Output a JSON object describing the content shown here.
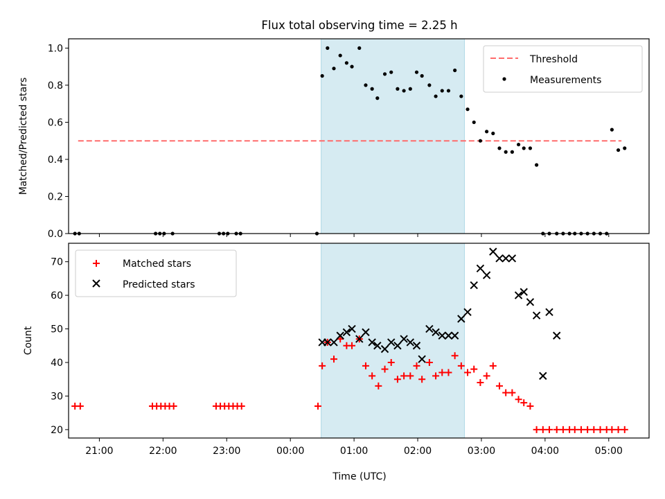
{
  "figure": {
    "title": "Flux total observing time = 2.25 h",
    "xlabel": "Time (UTC)",
    "colors": {
      "shade": "#add8e6",
      "threshold": "#ff6b6b",
      "measure": "#000000",
      "matched": "#ff0000",
      "predicted": "#000000"
    }
  },
  "chart_data": [
    {
      "type": "scatter",
      "ylabel": "Matched/Predicted stars",
      "xlim": [
        "20:31",
        "05:38"
      ],
      "ylim": [
        0,
        1.05
      ],
      "yticks": [
        "0.0",
        "0.2",
        "0.4",
        "0.6",
        "0.8",
        "1.0"
      ],
      "shaded_interval": [
        "00:29",
        "02:44"
      ],
      "legend_position": "upper right",
      "threshold": {
        "name": "Threshold",
        "value": 0.5,
        "x_range": [
          "20:40",
          "05:12"
        ]
      },
      "series": [
        {
          "name": "Measurements",
          "x": [
            "20:37",
            "20:41",
            "21:53",
            "21:57",
            "22:01",
            "22:09",
            "22:53",
            "22:57",
            "23:01",
            "23:09",
            "23:13",
            "00:25",
            "00:30",
            "00:35",
            "00:41",
            "00:47",
            "00:53",
            "00:58",
            "01:05",
            "01:11",
            "01:17",
            "01:22",
            "01:29",
            "01:35",
            "01:41",
            "01:47",
            "01:53",
            "01:59",
            "02:04",
            "02:11",
            "02:17",
            "02:23",
            "02:29",
            "02:35",
            "02:41",
            "02:47",
            "02:53",
            "02:59",
            "03:05",
            "03:11",
            "03:17",
            "03:23",
            "03:29",
            "03:35",
            "03:40",
            "03:46",
            "03:52",
            "03:58",
            "04:04",
            "04:11",
            "04:17",
            "04:23",
            "04:28",
            "04:34",
            "04:40",
            "04:46",
            "04:52",
            "04:58",
            "05:03",
            "05:09",
            "05:15"
          ],
          "y": [
            0,
            0,
            0,
            0,
            0,
            0,
            0,
            0,
            0,
            0,
            0,
            0,
            0.85,
            1.0,
            0.89,
            0.96,
            0.92,
            0.9,
            1.0,
            0.8,
            0.78,
            0.73,
            0.86,
            0.87,
            0.78,
            0.77,
            0.78,
            0.87,
            0.85,
            0.8,
            0.74,
            0.77,
            0.77,
            0.88,
            0.74,
            0.67,
            0.6,
            0.5,
            0.55,
            0.54,
            0.46,
            0.44,
            0.44,
            0.48,
            0.46,
            0.46,
            0.37,
            0,
            0,
            0,
            0,
            0,
            0,
            0,
            0,
            0,
            0,
            0,
            0.56,
            0.45,
            0.46
          ]
        }
      ]
    },
    {
      "type": "scatter",
      "ylabel": "Count",
      "xlim": [
        "20:31",
        "05:38"
      ],
      "ylim": [
        17.5,
        75.5
      ],
      "yticks": [
        "20",
        "30",
        "40",
        "50",
        "60",
        "70"
      ],
      "xticks": [
        "21:00",
        "22:00",
        "23:00",
        "00:00",
        "01:00",
        "02:00",
        "03:00",
        "04:00",
        "05:00"
      ],
      "shaded_interval": [
        "00:29",
        "02:44"
      ],
      "legend_position": "upper left",
      "series": [
        {
          "name": "Matched stars",
          "x": [
            "20:37",
            "20:42",
            "21:50",
            "21:54",
            "21:58",
            "22:02",
            "22:06",
            "22:10",
            "22:50",
            "22:54",
            "22:58",
            "23:02",
            "23:06",
            "23:10",
            "23:14",
            "00:26",
            "00:30",
            "00:35",
            "00:41",
            "00:47",
            "00:53",
            "00:58",
            "01:05",
            "01:11",
            "01:17",
            "01:23",
            "01:29",
            "01:35",
            "01:41",
            "01:47",
            "01:53",
            "01:59",
            "02:04",
            "02:11",
            "02:17",
            "02:23",
            "02:29",
            "02:35",
            "02:41",
            "02:47",
            "02:53",
            "02:59",
            "03:05",
            "03:11",
            "03:17",
            "03:23",
            "03:29",
            "03:35",
            "03:40",
            "03:46",
            "03:52",
            "03:58",
            "04:04",
            "04:11",
            "04:17",
            "04:23",
            "04:28",
            "04:34",
            "04:40",
            "04:46",
            "04:52",
            "04:58",
            "05:03",
            "05:09",
            "05:15"
          ],
          "y": [
            27,
            27,
            27,
            27,
            27,
            27,
            27,
            27,
            27,
            27,
            27,
            27,
            27,
            27,
            27,
            27,
            39,
            46,
            41,
            47,
            45,
            45,
            47,
            39,
            36,
            33,
            38,
            40,
            35,
            36,
            36,
            39,
            35,
            40,
            36,
            37,
            37,
            42,
            39,
            37,
            38,
            34,
            36,
            39,
            33,
            31,
            31,
            29,
            28,
            27,
            20,
            20,
            20,
            20,
            20,
            20,
            20,
            20,
            20,
            20,
            20,
            20,
            20,
            20,
            20
          ]
        },
        {
          "name": "Predicted stars",
          "x": [
            "00:30",
            "00:35",
            "00:41",
            "00:47",
            "00:53",
            "00:58",
            "01:05",
            "01:11",
            "01:17",
            "01:22",
            "01:29",
            "01:35",
            "01:41",
            "01:47",
            "01:53",
            "01:59",
            "02:04",
            "02:11",
            "02:17",
            "02:23",
            "02:29",
            "02:35",
            "02:41",
            "02:47",
            "02:53",
            "02:59",
            "03:05",
            "03:11",
            "03:17",
            "03:23",
            "03:29",
            "03:35",
            "03:40",
            "03:46",
            "03:52",
            "03:58",
            "04:04",
            "04:11",
            "04:17",
            "04:23",
            "04:28",
            "04:34",
            "04:40",
            "04:46",
            "04:52",
            "04:58",
            "05:03",
            "05:09",
            "05:15"
          ],
          "y": [
            46,
            46,
            46,
            48,
            49,
            50,
            47,
            49,
            46,
            45,
            44,
            46,
            45,
            47,
            46,
            45,
            41,
            50,
            49,
            48,
            48,
            48,
            53,
            55,
            63,
            68,
            66,
            73,
            71,
            71,
            71,
            60,
            61,
            58,
            54,
            36,
            55,
            48,
            null,
            null,
            null,
            null,
            null,
            null,
            null,
            null,
            null,
            null,
            null
          ]
        }
      ]
    }
  ]
}
